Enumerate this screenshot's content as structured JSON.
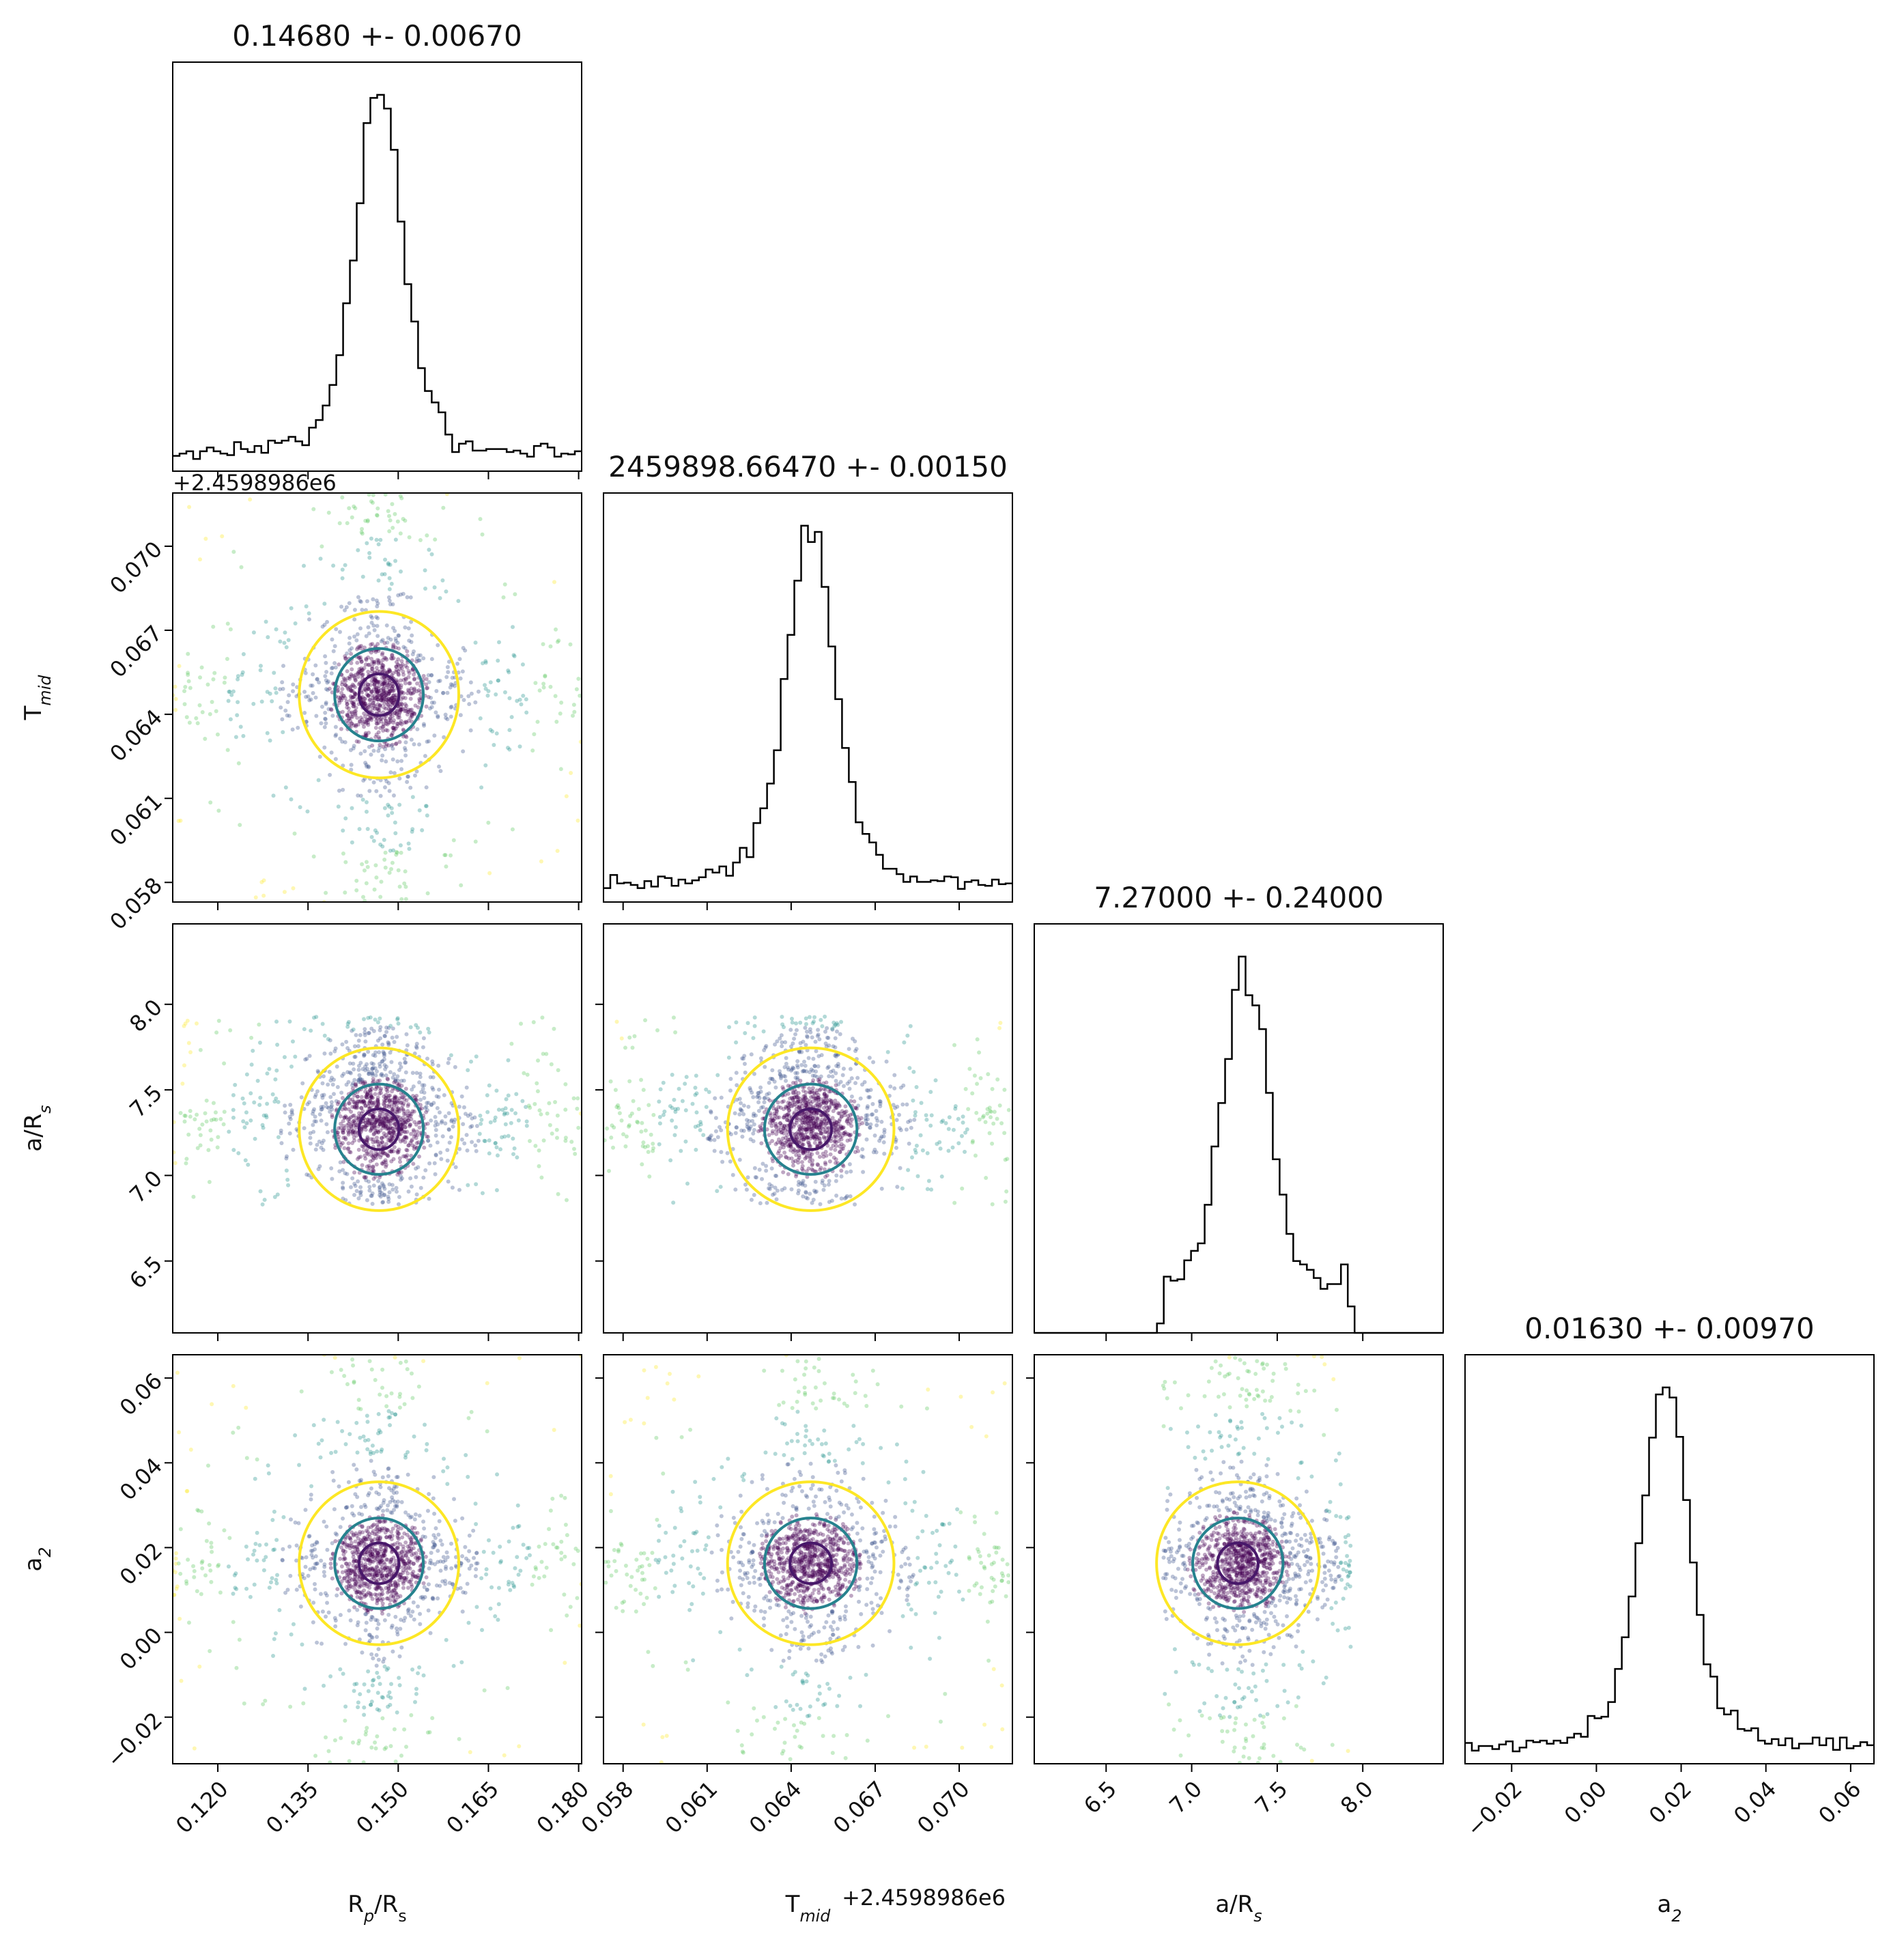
{
  "colors": {
    "inner_contour": "#48186a",
    "middle_contour": "#26828e",
    "outer_contour": "#fde725",
    "histogram": "#000000",
    "scatter_palette": [
      "#440154",
      "#3b528b",
      "#21918c",
      "#5ec962",
      "#fde725"
    ]
  },
  "chart_data": {
    "type": "corner",
    "parameters": [
      {
        "key": "rp",
        "label": "Rp/Rs",
        "label_base": "R",
        "label_sub": "p",
        "label_mid": "/R",
        "label_sub2": "s",
        "range": [
          0.1125,
          0.1805
        ],
        "ticks": [
          "0.120",
          "0.135",
          "0.150",
          "0.165",
          "0.180"
        ],
        "tick_values": [
          0.12,
          0.135,
          0.15,
          0.165,
          0.18
        ],
        "title": "0.14680 +- 0.00670",
        "median": 0.1468,
        "sigma": 0.0067,
        "offset_label": "",
        "histogram_shape": "peaked-heavy-tails"
      },
      {
        "key": "tmid",
        "label": "Tmid",
        "label_base": "T",
        "label_sub": "mid",
        "label_mid": "",
        "label_sub2": "",
        "range": [
          0.0573,
          0.0719
        ],
        "ticks": [
          "0.058",
          "0.061",
          "0.064",
          "0.067",
          "0.070"
        ],
        "tick_values": [
          0.058,
          0.061,
          0.064,
          0.067,
          0.07
        ],
        "title": "2459898.66470 +- 0.00150",
        "median": 0.0647,
        "sigma": 0.0015,
        "offset_label": "+2.4598986e6",
        "histogram_shape": "peaked-heavy-tails"
      },
      {
        "key": "ars",
        "label": "a/Rs",
        "label_base": "a/R",
        "label_sub": "s",
        "label_mid": "",
        "label_sub2": "",
        "range": [
          6.08,
          8.47
        ],
        "ticks": [
          "6.5",
          "7.0",
          "7.5",
          "8.0"
        ],
        "tick_values": [
          6.5,
          7.0,
          7.5,
          8.0
        ],
        "title": "7.27000 +- 0.24000",
        "median": 7.27,
        "sigma": 0.24,
        "offset_label": "",
        "histogram_shape": "truncated",
        "trunc": [
          6.83,
          7.93
        ]
      },
      {
        "key": "a2",
        "label": "a2",
        "label_base": "a",
        "label_sub": "2",
        "label_mid": "",
        "label_sub2": "",
        "range": [
          -0.031,
          0.0655
        ],
        "ticks": [
          "−0.02",
          "0.00",
          "0.02",
          "0.04",
          "0.06"
        ],
        "tick_values": [
          -0.02,
          0.0,
          0.02,
          0.04,
          0.06
        ],
        "title": "0.01630 +- 0.00970",
        "median": 0.0163,
        "sigma": 0.0097,
        "offset_label": "",
        "histogram_shape": "peaked-heavy-tails"
      }
    ],
    "contour_levels": [
      "inner",
      "middle",
      "outer"
    ],
    "grid": false,
    "legend": "none"
  }
}
